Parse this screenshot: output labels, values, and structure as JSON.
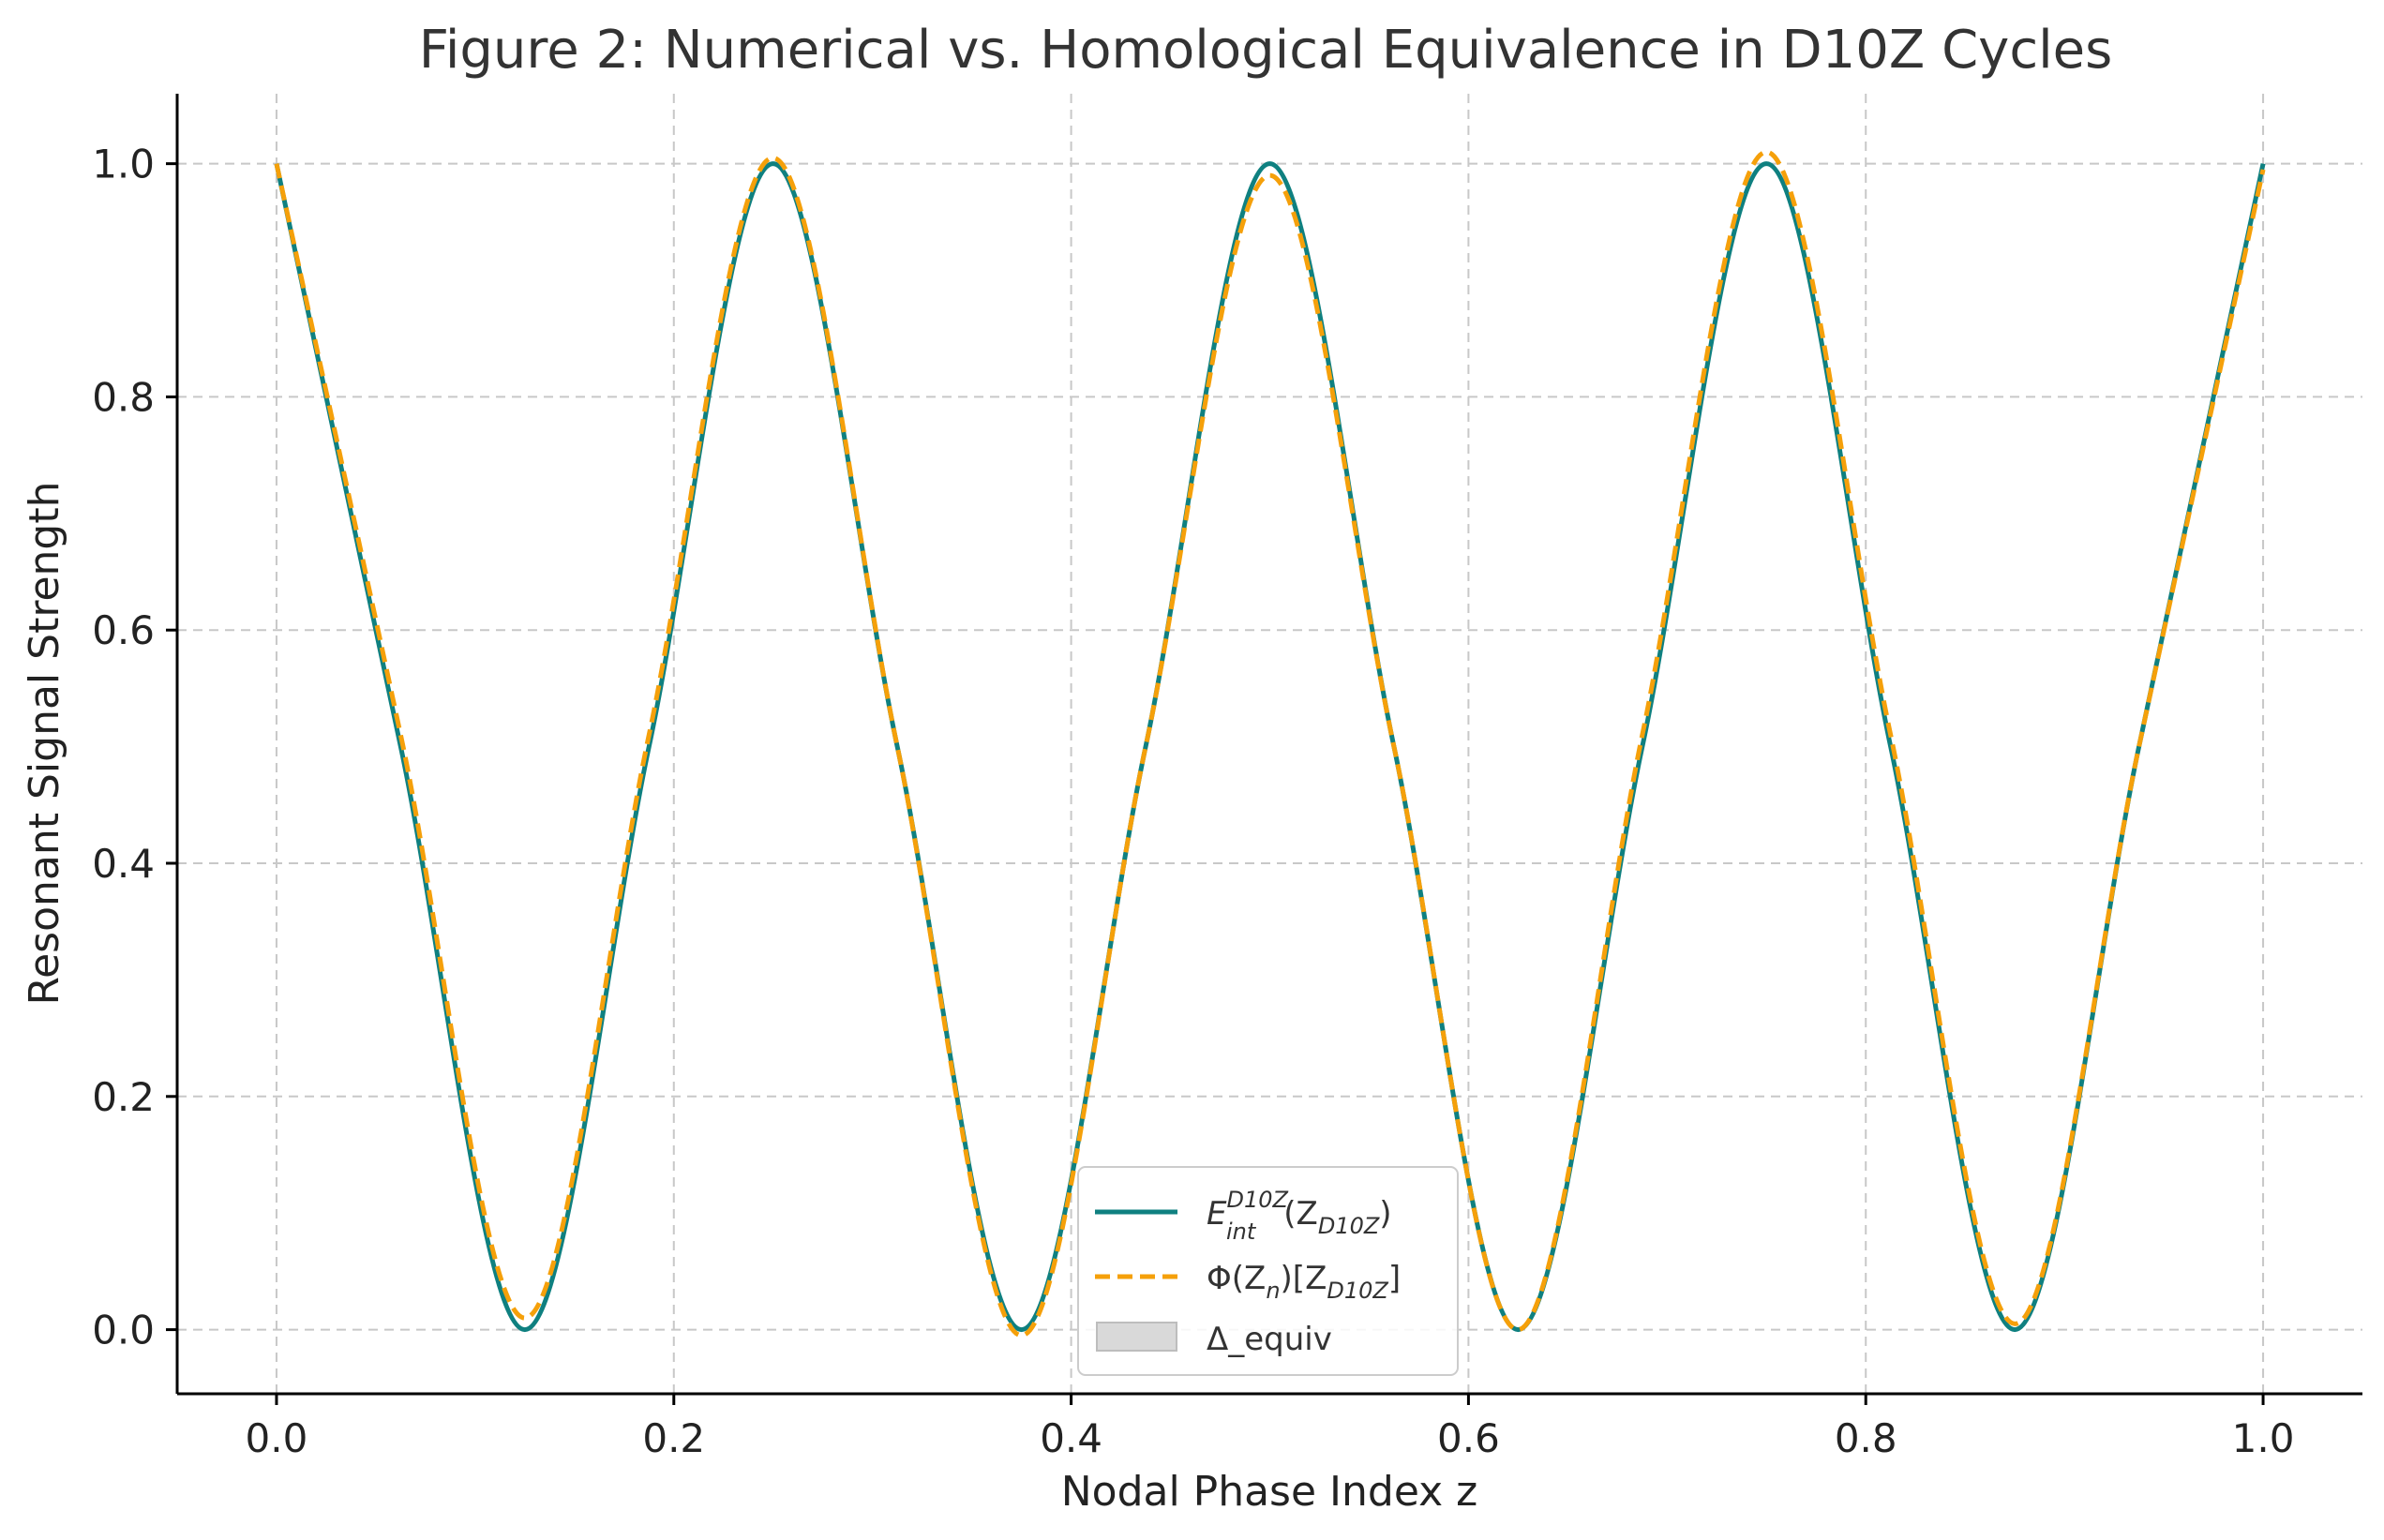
{
  "chart_data": {
    "type": "line",
    "title": "Figure 2: Numerical vs. Homological Equivalence in D10Z Cycles",
    "xlabel": "Nodal Phase Index z",
    "ylabel": "Resonant Signal Strength",
    "xlim": [
      -0.05,
      1.05
    ],
    "ylim": [
      -0.055,
      1.06
    ],
    "xticks": [
      0.0,
      0.2,
      0.4,
      0.6,
      0.8,
      1.0
    ],
    "xtick_labels": [
      "0.0",
      "0.2",
      "0.4",
      "0.6",
      "0.8",
      "1.0"
    ],
    "yticks": [
      0.0,
      0.2,
      0.4,
      0.6,
      0.8,
      1.0
    ],
    "ytick_labels": [
      "0.0",
      "0.2",
      "0.4",
      "0.6",
      "0.8",
      "1.0"
    ],
    "grid": true,
    "legend_position": "bottom-center",
    "x": [
      0.0,
      0.0625,
      0.125,
      0.1875,
      0.25,
      0.3125,
      0.375,
      0.4375,
      0.5,
      0.5625,
      0.625,
      0.6875,
      0.75,
      0.8125,
      0.875,
      0.9375,
      1.0
    ],
    "series": [
      {
        "name_base": "E",
        "name_sup": "D10Z",
        "name_sub": "int",
        "name_tail_open": "(Z",
        "name_tail_sub": "D10Z",
        "name_tail_close": ")",
        "style": "solid",
        "color": "#0f8080",
        "values": [
          1.0,
          0.5,
          0.0,
          0.5,
          1.0,
          0.5,
          0.0,
          0.5,
          1.0,
          0.5,
          0.0,
          0.5,
          1.0,
          0.5,
          0.0,
          0.5,
          1.0
        ]
      },
      {
        "name_base": "Φ(Z",
        "name_sub": "n",
        "name_mid": ")[Z",
        "name_tail_sub": "D10Z",
        "name_tail_close": "]",
        "style": "dashed",
        "color": "#f5a00a",
        "values": [
          1.0,
          0.51,
          0.01,
          0.51,
          1.005,
          0.5,
          -0.005,
          0.5,
          0.99,
          0.5,
          0.0,
          0.51,
          1.01,
          0.51,
          0.005,
          0.5,
          0.995
        ]
      },
      {
        "name": "Δ_equiv",
        "style": "band",
        "color": "#d9d9d9"
      }
    ]
  }
}
